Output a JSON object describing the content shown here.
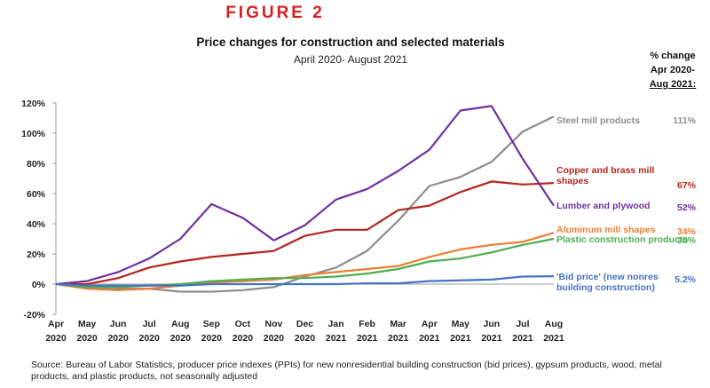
{
  "chart_data": {
    "type": "line",
    "figure_label": "FIGURE 2",
    "title": "Price changes for construction and selected materials",
    "subtitle": "April 2020- August 2021",
    "change_header": [
      "% change",
      "Apr 2020-",
      "Aug 2021:"
    ],
    "source": "Source: Bureau of Labor Statistics, producer price indexes (PPIs) for new nonresidential building construction (bid prices), gypsum products, wood, metal products, and plastic products, not seasonally adjusted",
    "categories": [
      "Apr 2020",
      "May 2020",
      "Jun 2020",
      "Jul 2020",
      "Aug 2020",
      "Sep 2020",
      "Oct 2020",
      "Nov 2020",
      "Dec 2020",
      "Jan 2021",
      "Feb 2021",
      "Mar 2021",
      "Apr 2021",
      "May 2021",
      "Jun 2021",
      "Jul 2021",
      "Aug 2021"
    ],
    "ylim": [
      -20,
      120
    ],
    "yticks": [
      {
        "value": -20,
        "label": "-20%"
      },
      {
        "value": 0,
        "label": "0%"
      },
      {
        "value": 20,
        "label": "20%"
      },
      {
        "value": 40,
        "label": "40%"
      },
      {
        "value": 60,
        "label": "60%"
      },
      {
        "value": 80,
        "label": "80%"
      },
      {
        "value": 100,
        "label": "100%"
      },
      {
        "value": 120,
        "label": "120%"
      }
    ],
    "grid": false,
    "series": [
      {
        "name": "Steel mill products",
        "color": "#8c8c8c",
        "change": 111,
        "change_label": "111%",
        "values": [
          0,
          -2,
          -3,
          -3,
          -5,
          -5,
          -4,
          -2,
          5,
          11,
          22,
          42,
          65,
          71,
          81,
          101,
          111
        ]
      },
      {
        "name": "Copper and brass mill shapes",
        "color": "#b3261e",
        "change": 67,
        "change_label": "67%",
        "values": [
          0,
          0,
          4,
          11,
          15,
          18,
          20,
          22,
          32,
          36,
          36,
          49,
          52,
          61,
          68,
          66,
          67
        ]
      },
      {
        "name": "Lumber and plywood",
        "color": "#7030a0",
        "change": 52,
        "change_label": "52%",
        "values": [
          0,
          2,
          8,
          17,
          30,
          53,
          44,
          29,
          39,
          56,
          63,
          75,
          89,
          115,
          118,
          83,
          52
        ]
      },
      {
        "name": "Aluminum mill shapes",
        "color": "#ed7d31",
        "change": 34,
        "change_label": "34%",
        "values": [
          0,
          -3,
          -4,
          -3,
          -1,
          1,
          2,
          3,
          6,
          8,
          10,
          12,
          18,
          23,
          26,
          28,
          34
        ]
      },
      {
        "name": "Plastic construction products",
        "color": "#4caf50",
        "change": 30,
        "change_label": "30%",
        "values": [
          0,
          -2,
          -2,
          -1,
          0,
          2,
          3,
          4,
          4,
          5,
          7,
          10,
          15,
          17,
          21,
          26,
          30
        ]
      },
      {
        "name": "'Bid price' (new nonres building construction)",
        "color": "#4472c4",
        "change": 5.2,
        "change_label": "5.2%",
        "values": [
          0,
          -1,
          -1,
          -1,
          -1,
          0,
          0,
          0,
          0,
          0,
          0.5,
          0.5,
          2,
          2.5,
          3,
          5,
          5.2
        ]
      }
    ]
  }
}
